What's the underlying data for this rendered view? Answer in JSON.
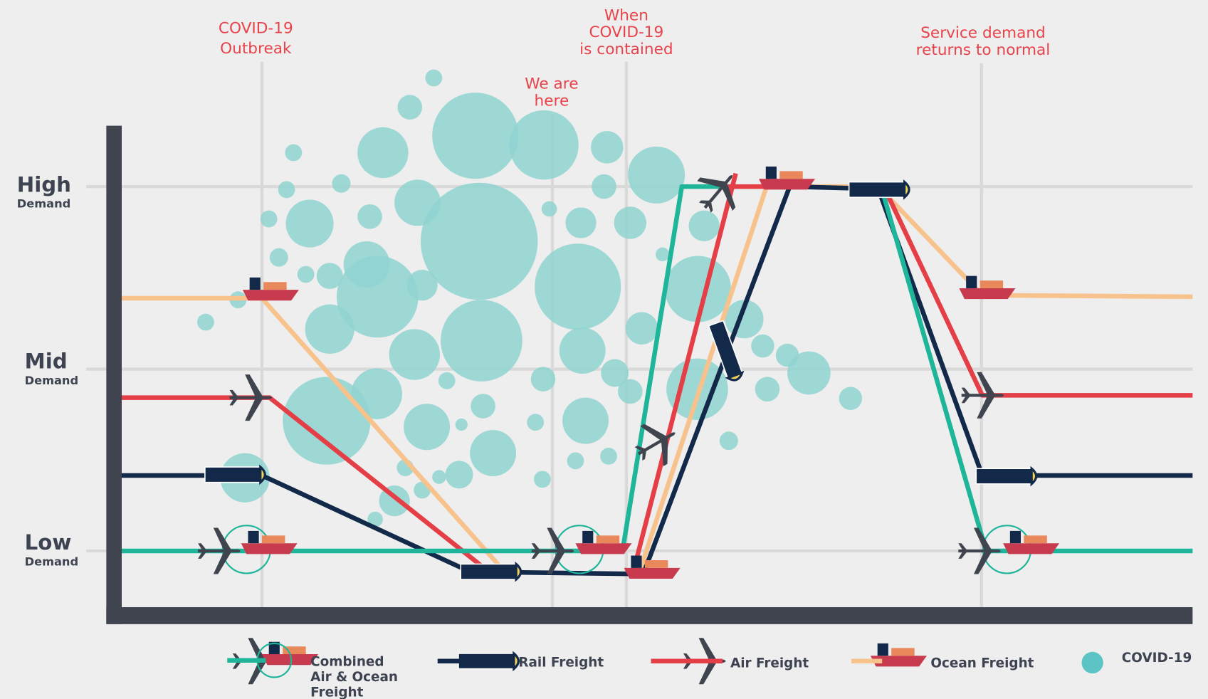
{
  "annotations": [
    {
      "lines": [
        "COVID-19",
        "Outbreak"
      ]
    },
    {
      "lines": [
        "We are",
        "here"
      ]
    },
    {
      "lines": [
        "When",
        "COVID-19",
        "is contained"
      ]
    },
    {
      "lines": [
        "Service demand",
        "returns to normal"
      ]
    }
  ],
  "demand_levels": [
    {
      "level": "High",
      "label": "Demand"
    },
    {
      "level": "Mid",
      "label": "Demand"
    },
    {
      "level": "Low",
      "label": "Demand"
    }
  ],
  "legend": [
    {
      "lines": [
        "Combined",
        "Air & Ocean",
        "Freight"
      ]
    },
    {
      "lines": [
        "Rail Freight"
      ]
    },
    {
      "lines": [
        "Air Freight"
      ]
    },
    {
      "lines": [
        "Ocean Freight"
      ]
    },
    {
      "lines": [
        "COVID-19"
      ]
    }
  ]
}
